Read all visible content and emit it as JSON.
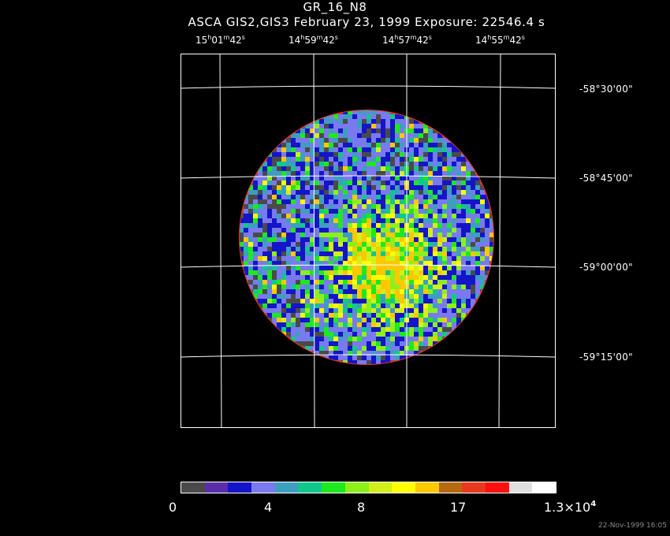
{
  "header": {
    "title": "GR_16_N8",
    "subtitle": "ASCA GIS2,GIS3 February 23, 1999 Exposure: 22546.4 s"
  },
  "ra_labels": [
    {
      "h": "15",
      "m": "01",
      "s": "42"
    },
    {
      "h": "14",
      "m": "59",
      "s": "42"
    },
    {
      "h": "14",
      "m": "57",
      "s": "42"
    },
    {
      "h": "14",
      "m": "55",
      "s": "42"
    }
  ],
  "ra_units": {
    "h": "h",
    "m": "m",
    "s": "s"
  },
  "dec_labels": [
    "-58°30'00\"",
    "-58°45'00\"",
    "-59°00'00\"",
    "-59°15'00\""
  ],
  "colorbar": {
    "colors": [
      "#4a4a4a",
      "#5a2ea8",
      "#1414c8",
      "#7a7af0",
      "#3e9ec0",
      "#10c88c",
      "#1ee81e",
      "#8ef01a",
      "#d2f01a",
      "#ffff00",
      "#ffc800",
      "#b8680e",
      "#e8381e",
      "#ff1010",
      "#e0e0e0",
      "#ffffff"
    ],
    "ticks": [
      "0",
      "4",
      "8",
      "17"
    ],
    "max_mantissa": "1.3×10",
    "max_exp": "4"
  },
  "timestamp": "22-Nov-1999 16:05"
}
